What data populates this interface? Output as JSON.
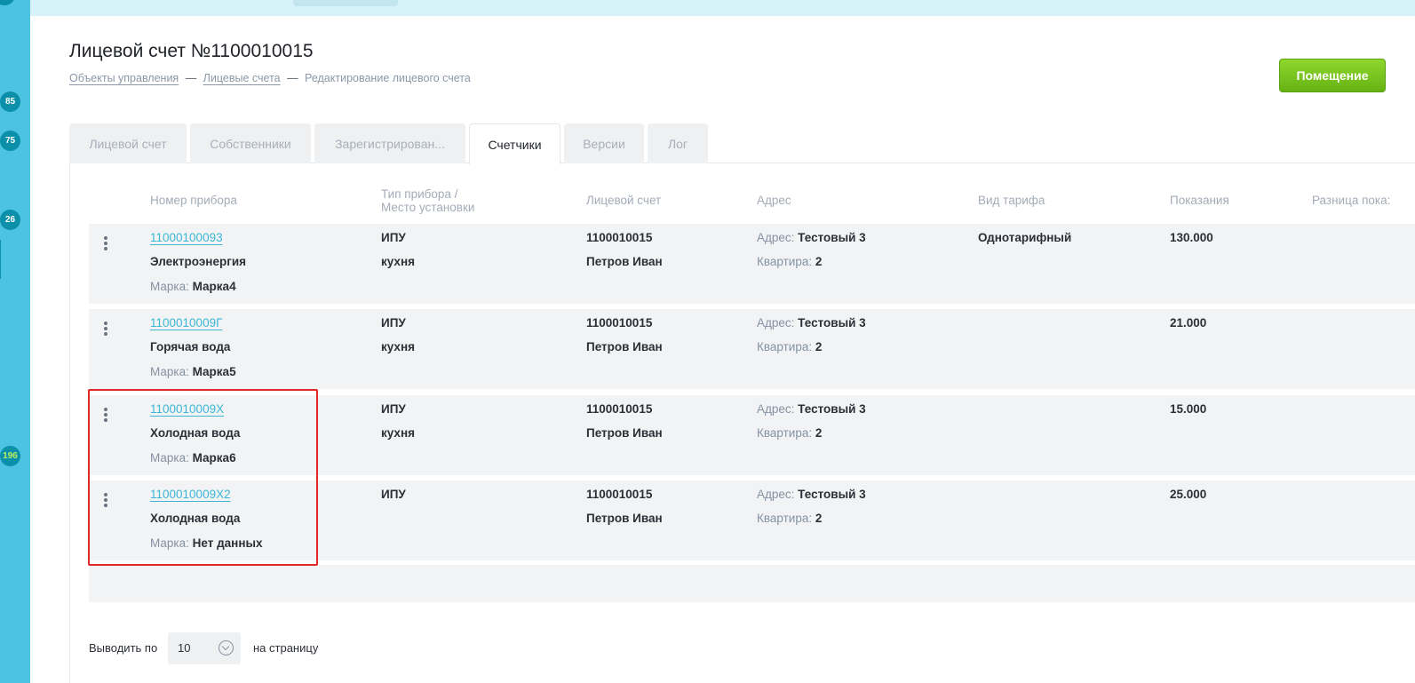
{
  "sidebar": {
    "badges": [
      "85",
      "75",
      "26",
      "196"
    ]
  },
  "page": {
    "title": "Лицевой счет №1100010015",
    "breadcrumbs": [
      "Объекты управления",
      "Лицевые счета",
      "Редактирование лицевого счета"
    ],
    "breadcrumb_separator": "—",
    "room_button": "Помещение"
  },
  "tabs": [
    "Лицевой счет",
    "Собственники",
    "Зарегистрирован...",
    "Счетчики",
    "Версии",
    "Лог"
  ],
  "active_tab": "Счетчики",
  "table": {
    "headers": {
      "number": "Номер прибора",
      "type_line1": "Тип прибора /",
      "type_line2": "Место установки",
      "account": "Лицевой счет",
      "address": "Адрес",
      "tariff": "Вид тарифа",
      "readings": "Показания",
      "diff": "Разница пока:"
    },
    "labels": {
      "brand": "Марка:",
      "address": "Адрес:",
      "apartment": "Квартира:"
    },
    "rows": [
      {
        "number": "11000100093",
        "resource": "Электроэнергия",
        "brand": "Марка4",
        "type": "ИПУ",
        "place": "кухня",
        "account": "1100010015",
        "owner": "Петров Иван",
        "address": "Тестовый 3",
        "apartment": "2",
        "tariff": "Однотарифный",
        "reading": "130.000"
      },
      {
        "number": "1100010009Г",
        "resource": "Горячая вода",
        "brand": "Марка5",
        "type": "ИПУ",
        "place": "кухня",
        "account": "1100010015",
        "owner": "Петров Иван",
        "address": "Тестовый 3",
        "apartment": "2",
        "tariff": "",
        "reading": "21.000"
      },
      {
        "number": "1100010009Х",
        "resource": "Холодная вода",
        "brand": "Марка6",
        "type": "ИПУ",
        "place": "кухня",
        "account": "1100010015",
        "owner": "Петров Иван",
        "address": "Тестовый 3",
        "apartment": "2",
        "tariff": "",
        "reading": "15.000"
      },
      {
        "number": "1100010009Х2",
        "resource": "Холодная вода",
        "brand": "Нет данных",
        "type": "ИПУ",
        "place": "",
        "account": "1100010015",
        "owner": "Петров Иван",
        "address": "Тестовый 3",
        "apartment": "2",
        "tariff": "",
        "reading": "25.000"
      }
    ]
  },
  "pager": {
    "prefix": "Выводить по",
    "value": "10",
    "suffix": "на страницу"
  },
  "colors": {
    "sidebar": "#4cc3e0",
    "accent_link": "#3bb7d4",
    "button_green": "#7cc521",
    "highlight_red": "#e02828"
  }
}
